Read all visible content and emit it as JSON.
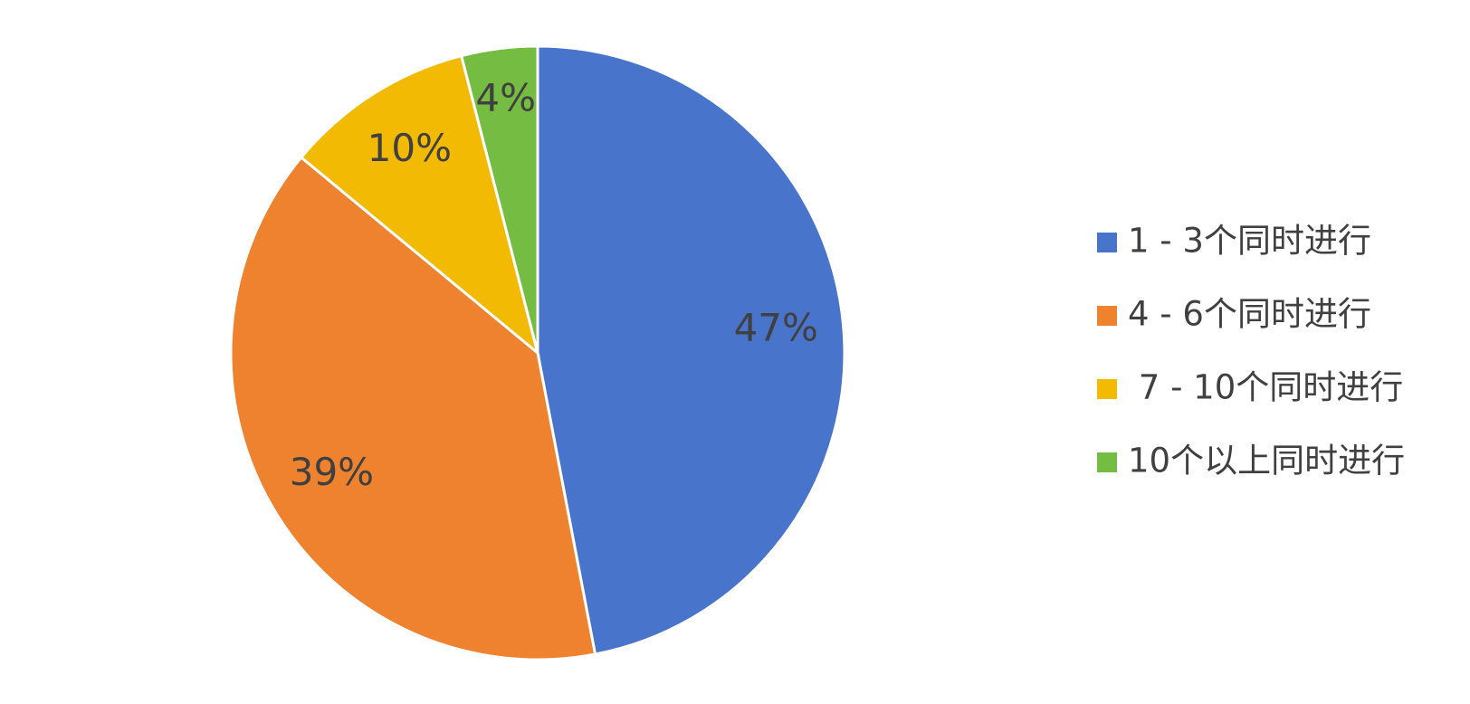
{
  "chart_data": {
    "type": "pie",
    "categories": [
      "1 - 3个同时进行",
      "4 - 6个同时进行",
      " 7 - 10个同时进行",
      "10个以上同时进行"
    ],
    "values": [
      47,
      39,
      10,
      4
    ],
    "value_labels": [
      "47%",
      "39%",
      "10%",
      "4%"
    ],
    "colors": [
      "#4874cb",
      "#ee822f",
      "#f2ba02",
      "#75bd42"
    ],
    "legend": "right"
  }
}
